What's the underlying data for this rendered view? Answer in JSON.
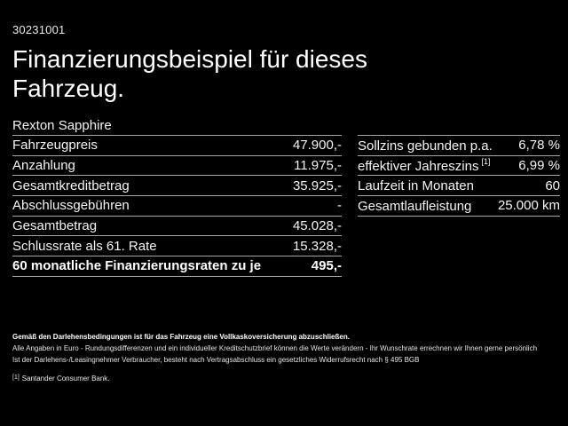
{
  "doc_number": "30231001",
  "title": "Finanzierungsbeispiel für dieses Fahrzeug.",
  "vehicle_name": "Rexton Sapphire",
  "finance_table": {
    "rows": [
      {
        "label": "Fahrzeugpreis",
        "value": "47.900,-"
      },
      {
        "label": "Anzahlung",
        "value": "11.975,-"
      },
      {
        "label": "Gesamtkreditbetrag",
        "value": "35.925,-"
      },
      {
        "label": "Abschlussgebühren",
        "value": "-"
      },
      {
        "label": "Gesamtbetrag",
        "value": "45.028,-"
      },
      {
        "label": "Schlussrate als 61. Rate",
        "value": "15.328,-"
      },
      {
        "label": "60 monatliche Finanzierungsraten zu je",
        "value": "495,-"
      }
    ]
  },
  "conditions_table": {
    "rows": [
      {
        "label": "Sollzins gebunden p.a.",
        "value": "6,78 %"
      },
      {
        "label": "effektiver Jahreszins",
        "footnote": "[1]",
        "value": "6,99 %"
      },
      {
        "label": "Laufzeit in Monaten",
        "value": "60"
      },
      {
        "label": "Gesamtlaufleistung",
        "value": "25.000 km"
      }
    ]
  },
  "fine_print": {
    "line1": "Gemäß den Darlehensbedingungen ist für das Fahrzeug eine Vollkaskoversicherung abzuschließen.",
    "line2": "Alle Angaben in Euro - Rundungsdifferenzen und ein individueller Kreditschutzbrief können die Werte verändern - Ihr Wunschrate errechnen wir Ihnen gerne persönlich",
    "line3": "Ist der Darlehens-/Leasingnehmer Verbraucher, besteht nach Vertragsabschluss ein gesetzliches Widerrufsrecht nach § 495 BGB",
    "footnote_marker": "[1]",
    "footnote_text": "Santander Consumer Bank."
  },
  "colors": {
    "background": "#000000",
    "text": "#ffffff",
    "divider": "#a6a6a6"
  }
}
